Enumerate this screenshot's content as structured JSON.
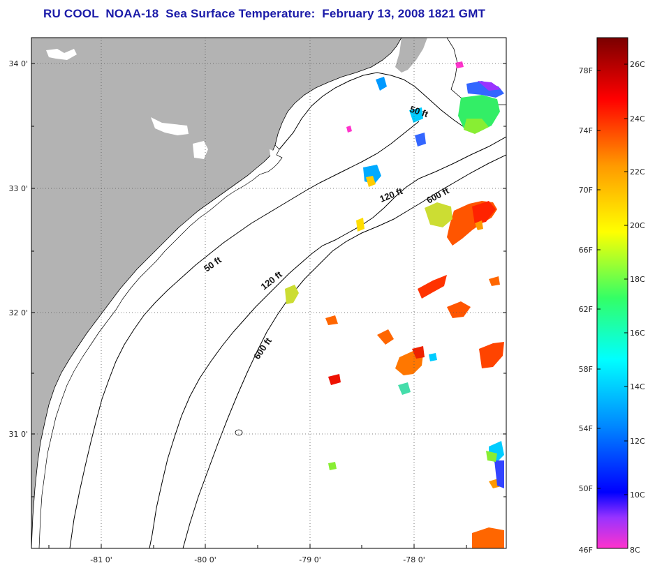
{
  "title": "RU COOL  NOAA-18  Sea Surface Temperature:  February 13, 2008 1821 GMT",
  "map": {
    "lat_labels": [
      "34 0'",
      "33 0'",
      "32 0'",
      "31 0'"
    ],
    "lon_labels": [
      "-81 0'",
      "-80 0'",
      "-79 0'",
      "-78 0'"
    ],
    "depth_labels": [
      "50 ft",
      "120 ft",
      "600 ft",
      "50 ft",
      "120 ft",
      "600 ft"
    ]
  },
  "colorbar": {
    "fahrenheit_labels": [
      "78F",
      "74F",
      "70F",
      "66F",
      "62F",
      "58F",
      "54F",
      "50F",
      "46F"
    ],
    "celsius_labels": [
      "26C",
      "24C",
      "22C",
      "20C",
      "18C",
      "16C",
      "14C",
      "12C",
      "10C",
      "8C"
    ],
    "color_stops": [
      "#ff33cc",
      "#9933ff",
      "#0000ff",
      "#0088ff",
      "#00ffff",
      "#33ff66",
      "#ffff00",
      "#ff9900",
      "#ff0000",
      "#7a0000"
    ]
  }
}
